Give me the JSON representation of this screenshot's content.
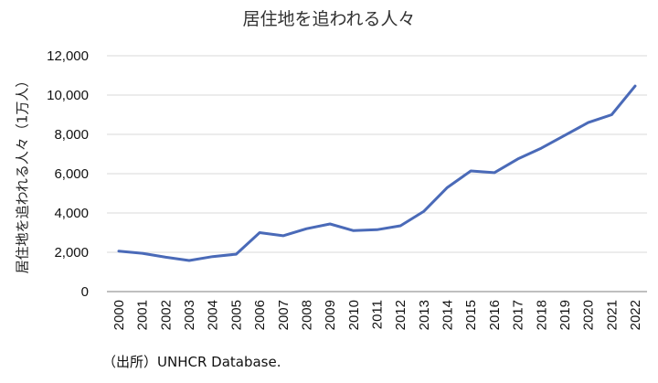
{
  "chart_data": {
    "type": "line",
    "title": "居住地を追われる人々",
    "xlabel": "",
    "ylabel": "居住地を追われる人々（1万人）",
    "ylim": [
      0,
      12000
    ],
    "yticks": [
      "0",
      "2,000",
      "4,000",
      "6,000",
      "8,000",
      "10,000",
      "12,000"
    ],
    "grid": true,
    "legend": null,
    "categories": [
      "2000",
      "2001",
      "2002",
      "2003",
      "2004",
      "2005",
      "2006",
      "2007",
      "2008",
      "2009",
      "2010",
      "2011",
      "2012",
      "2013",
      "2014",
      "2015",
      "2016",
      "2017",
      "2018",
      "2019",
      "2020",
      "2021",
      "2022"
    ],
    "series": [
      {
        "name": "居住地を追われる人々",
        "color": "#4a6ab8",
        "values": [
          2060,
          1950,
          1750,
          1580,
          1780,
          1900,
          3000,
          2840,
          3200,
          3440,
          3100,
          3150,
          3350,
          4090,
          5300,
          6140,
          6050,
          6750,
          7300,
          7950,
          8600,
          9000,
          10460
        ]
      }
    ],
    "source": "（出所）UNHCR Database."
  },
  "colors": {
    "line": "#4a6ab8",
    "grid": "#d9d9d9",
    "axis": "#bfbfbf"
  }
}
